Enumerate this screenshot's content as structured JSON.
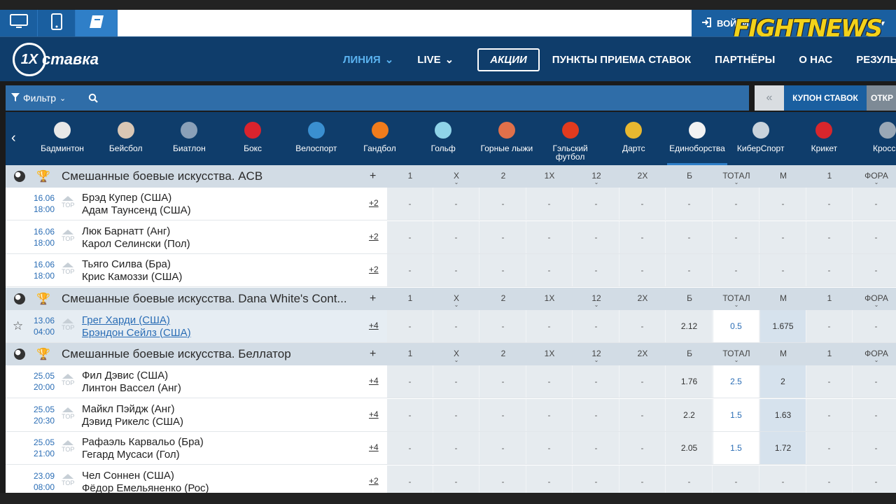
{
  "top": {
    "login_label": "ВОЙТИ",
    "watermark": "FIGHTNEWS"
  },
  "header": {
    "logo_mark": "1X",
    "logo_text": "ставка",
    "nav": [
      {
        "label": "ЛИНИЯ",
        "active": true,
        "chevron": true
      },
      {
        "label": "LIVE",
        "chevron": true
      },
      {
        "label": "АКЦИИ",
        "boxed": true
      },
      {
        "label": "ПУНКТЫ ПРИЕМА СТАВОК"
      },
      {
        "label": "ПАРТНЁРЫ"
      },
      {
        "label": "О НАС"
      },
      {
        "label": "РЕЗУЛЬ"
      }
    ]
  },
  "filter": {
    "label": "Фильтр"
  },
  "coupon": {
    "arrow": "«",
    "label": "КУПОН СТАВОК",
    "open": "ОТКР"
  },
  "sports": [
    {
      "label": "Бадминтон",
      "color": "#e8e8e8"
    },
    {
      "label": "Бейсбол",
      "color": "#d9c7b5"
    },
    {
      "label": "Биатлон",
      "color": "#8aa0b8"
    },
    {
      "label": "Бокс",
      "color": "#d9232d"
    },
    {
      "label": "Велоспорт",
      "color": "#3a8fd0"
    },
    {
      "label": "Гандбол",
      "color": "#f07c1c"
    },
    {
      "label": "Гольф",
      "color": "#8fd3e8"
    },
    {
      "label": "Горные лыжи",
      "color": "#e0704a"
    },
    {
      "label": "Гэльский футбол",
      "color": "#e23b1f"
    },
    {
      "label": "Дартс",
      "color": "#e8b830"
    },
    {
      "label": "Единоборства",
      "color": "#f2f2f2",
      "active": true
    },
    {
      "label": "КиберСпорт",
      "color": "#c9d3dc"
    },
    {
      "label": "Крикет",
      "color": "#d8262c"
    },
    {
      "label": "Кроссф",
      "color": "#9aa8b6"
    }
  ],
  "columns": [
    "1",
    "X",
    "2",
    "1X",
    "12",
    "2X",
    "Б",
    "ТОТАЛ",
    "М",
    "1",
    "ФОРА"
  ],
  "groups": [
    {
      "name": "Смешанные боевые искусства. ACB",
      "plus": "+",
      "matches": [
        {
          "date": "16.06",
          "time": "18:00",
          "team1": "Брэд Купер (США)",
          "team2": "Адам Таунсенд (США)",
          "more": "+2",
          "odds": [
            "-",
            "-",
            "-",
            "-",
            "-",
            "-",
            "-",
            "-",
            "-",
            "-",
            "-"
          ]
        },
        {
          "date": "16.06",
          "time": "18:00",
          "team1": "Люк Барнатт (Анг)",
          "team2": "Карол Селински (Пол)",
          "more": "+2",
          "odds": [
            "-",
            "-",
            "-",
            "-",
            "-",
            "-",
            "-",
            "-",
            "-",
            "-",
            "-"
          ]
        },
        {
          "date": "16.06",
          "time": "18:00",
          "team1": "Тьяго Силва (Бра)",
          "team2": "Крис Камоззи (США)",
          "more": "+2",
          "odds": [
            "-",
            "-",
            "-",
            "-",
            "-",
            "-",
            "-",
            "-",
            "-",
            "-",
            "-"
          ]
        }
      ]
    },
    {
      "name": "Смешанные боевые искусства. Dana White's Cont...",
      "plus": "+",
      "matches": [
        {
          "date": "13.06",
          "time": "04:00",
          "team1": "Грег Харди (США)",
          "team2": "Брэндон Сейлз (США)",
          "more": "+4",
          "star": true,
          "link": true,
          "odds": [
            "-",
            "-",
            "-",
            "-",
            "-",
            "-",
            "2.12",
            "0.5",
            "1.675",
            "-",
            "-"
          ]
        }
      ]
    },
    {
      "name": "Смешанные боевые искусства. Беллатор",
      "plus": "+",
      "matches": [
        {
          "date": "25.05",
          "time": "20:00",
          "team1": "Фил Дэвис (США)",
          "team2": "Линтон Вассел (Анг)",
          "more": "+4",
          "odds": [
            "-",
            "-",
            "-",
            "-",
            "-",
            "-",
            "1.76",
            "2.5",
            "2",
            "-",
            "-"
          ]
        },
        {
          "date": "25.05",
          "time": "20:30",
          "team1": "Майкл Пэйдж (Анг)",
          "team2": "Дэвид Рикелс (США)",
          "more": "+4",
          "odds": [
            "-",
            "-",
            "-",
            "-",
            "-",
            "-",
            "2.2",
            "1.5",
            "1.63",
            "-",
            "-"
          ]
        },
        {
          "date": "25.05",
          "time": "21:00",
          "team1": "Рафаэль Карвальо (Бра)",
          "team2": "Гегард Мусаси (Гол)",
          "more": "+4",
          "odds": [
            "-",
            "-",
            "-",
            "-",
            "-",
            "-",
            "2.05",
            "1.5",
            "1.72",
            "-",
            "-"
          ]
        },
        {
          "date": "23.09",
          "time": "08:00",
          "team1": "Чел Соннен (США)",
          "team2": "Фёдор Емельяненко (Рос)",
          "more": "+2",
          "odds": [
            "-",
            "-",
            "-",
            "-",
            "-",
            "-",
            "-",
            "-",
            "-",
            "-",
            "-"
          ]
        }
      ]
    }
  ]
}
